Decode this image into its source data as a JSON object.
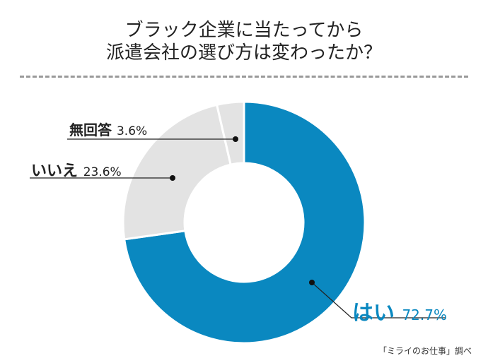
{
  "title_lines": [
    "ブラック企業に当たってから",
    "派遣会社の選び方は変わったか？"
  ],
  "source": "「ミライのお仕事」調べ",
  "chart_data": {
    "type": "pie",
    "donut": true,
    "categories": [
      "はい",
      "いいえ",
      "無回答"
    ],
    "values": [
      72.7,
      23.6,
      3.6
    ],
    "value_labels": [
      "72.7%",
      "23.6%",
      "3.6%"
    ],
    "colors": [
      "#0a88c0",
      "#e3e3e3",
      "#e3e3e3"
    ],
    "start": "12 o'clock, clockwise"
  }
}
